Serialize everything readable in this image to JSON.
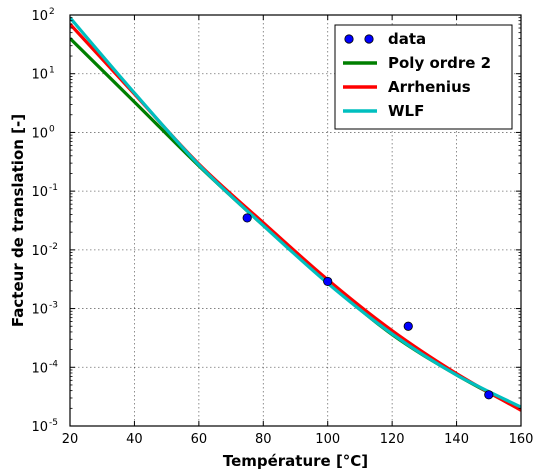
{
  "chart_data": {
    "type": "line",
    "title": "",
    "xlabel": "Température [°C]",
    "ylabel": "Facteur de translation [-]",
    "xlim": [
      20,
      160
    ],
    "ylim": [
      1e-05,
      100
    ],
    "yscale": "log",
    "grid": true,
    "legend_position": "top-right",
    "xticks": [
      "20",
      "40",
      "60",
      "80",
      "100",
      "120",
      "140",
      "160"
    ],
    "yticks": [
      {
        "value": 1e-05,
        "base": "10",
        "exp": "-5"
      },
      {
        "value": 0.0001,
        "base": "10",
        "exp": "-4"
      },
      {
        "value": 0.001,
        "base": "10",
        "exp": "-3"
      },
      {
        "value": 0.01,
        "base": "10",
        "exp": "-2"
      },
      {
        "value": 0.1,
        "base": "10",
        "exp": "-1"
      },
      {
        "value": 1,
        "base": "10",
        "exp": "0"
      },
      {
        "value": 10,
        "base": "10",
        "exp": "1"
      },
      {
        "value": 100,
        "base": "10",
        "exp": "2"
      }
    ],
    "series": [
      {
        "name": "data",
        "kind": "scatter",
        "color": "#0000ff",
        "x": [
          75,
          100,
          125,
          150
        ],
        "y": [
          0.035,
          0.0029,
          0.0005,
          3.4e-05
        ]
      },
      {
        "name": "Poly ordre 2",
        "kind": "line",
        "color": "#007f00",
        "x": [
          20,
          40,
          60,
          80,
          100,
          120,
          140,
          160
        ],
        "y": [
          40,
          3.3,
          0.27,
          0.026,
          0.0028,
          0.00036,
          7.4e-05,
          1.9e-05
        ]
      },
      {
        "name": "Arrhenius",
        "kind": "line",
        "color": "#ff0000",
        "x": [
          20,
          40,
          60,
          80,
          100,
          120,
          140,
          160
        ],
        "y": [
          70,
          4.5,
          0.29,
          0.029,
          0.0031,
          0.00042,
          7.8e-05,
          1.85e-05
        ]
      },
      {
        "name": "WLF",
        "kind": "line",
        "color": "#00bfbf",
        "x": [
          20,
          40,
          60,
          80,
          100,
          120,
          140,
          160
        ],
        "y": [
          90,
          4.7,
          0.28,
          0.026,
          0.0027,
          0.00037,
          7.4e-05,
          2.1e-05
        ]
      }
    ]
  }
}
